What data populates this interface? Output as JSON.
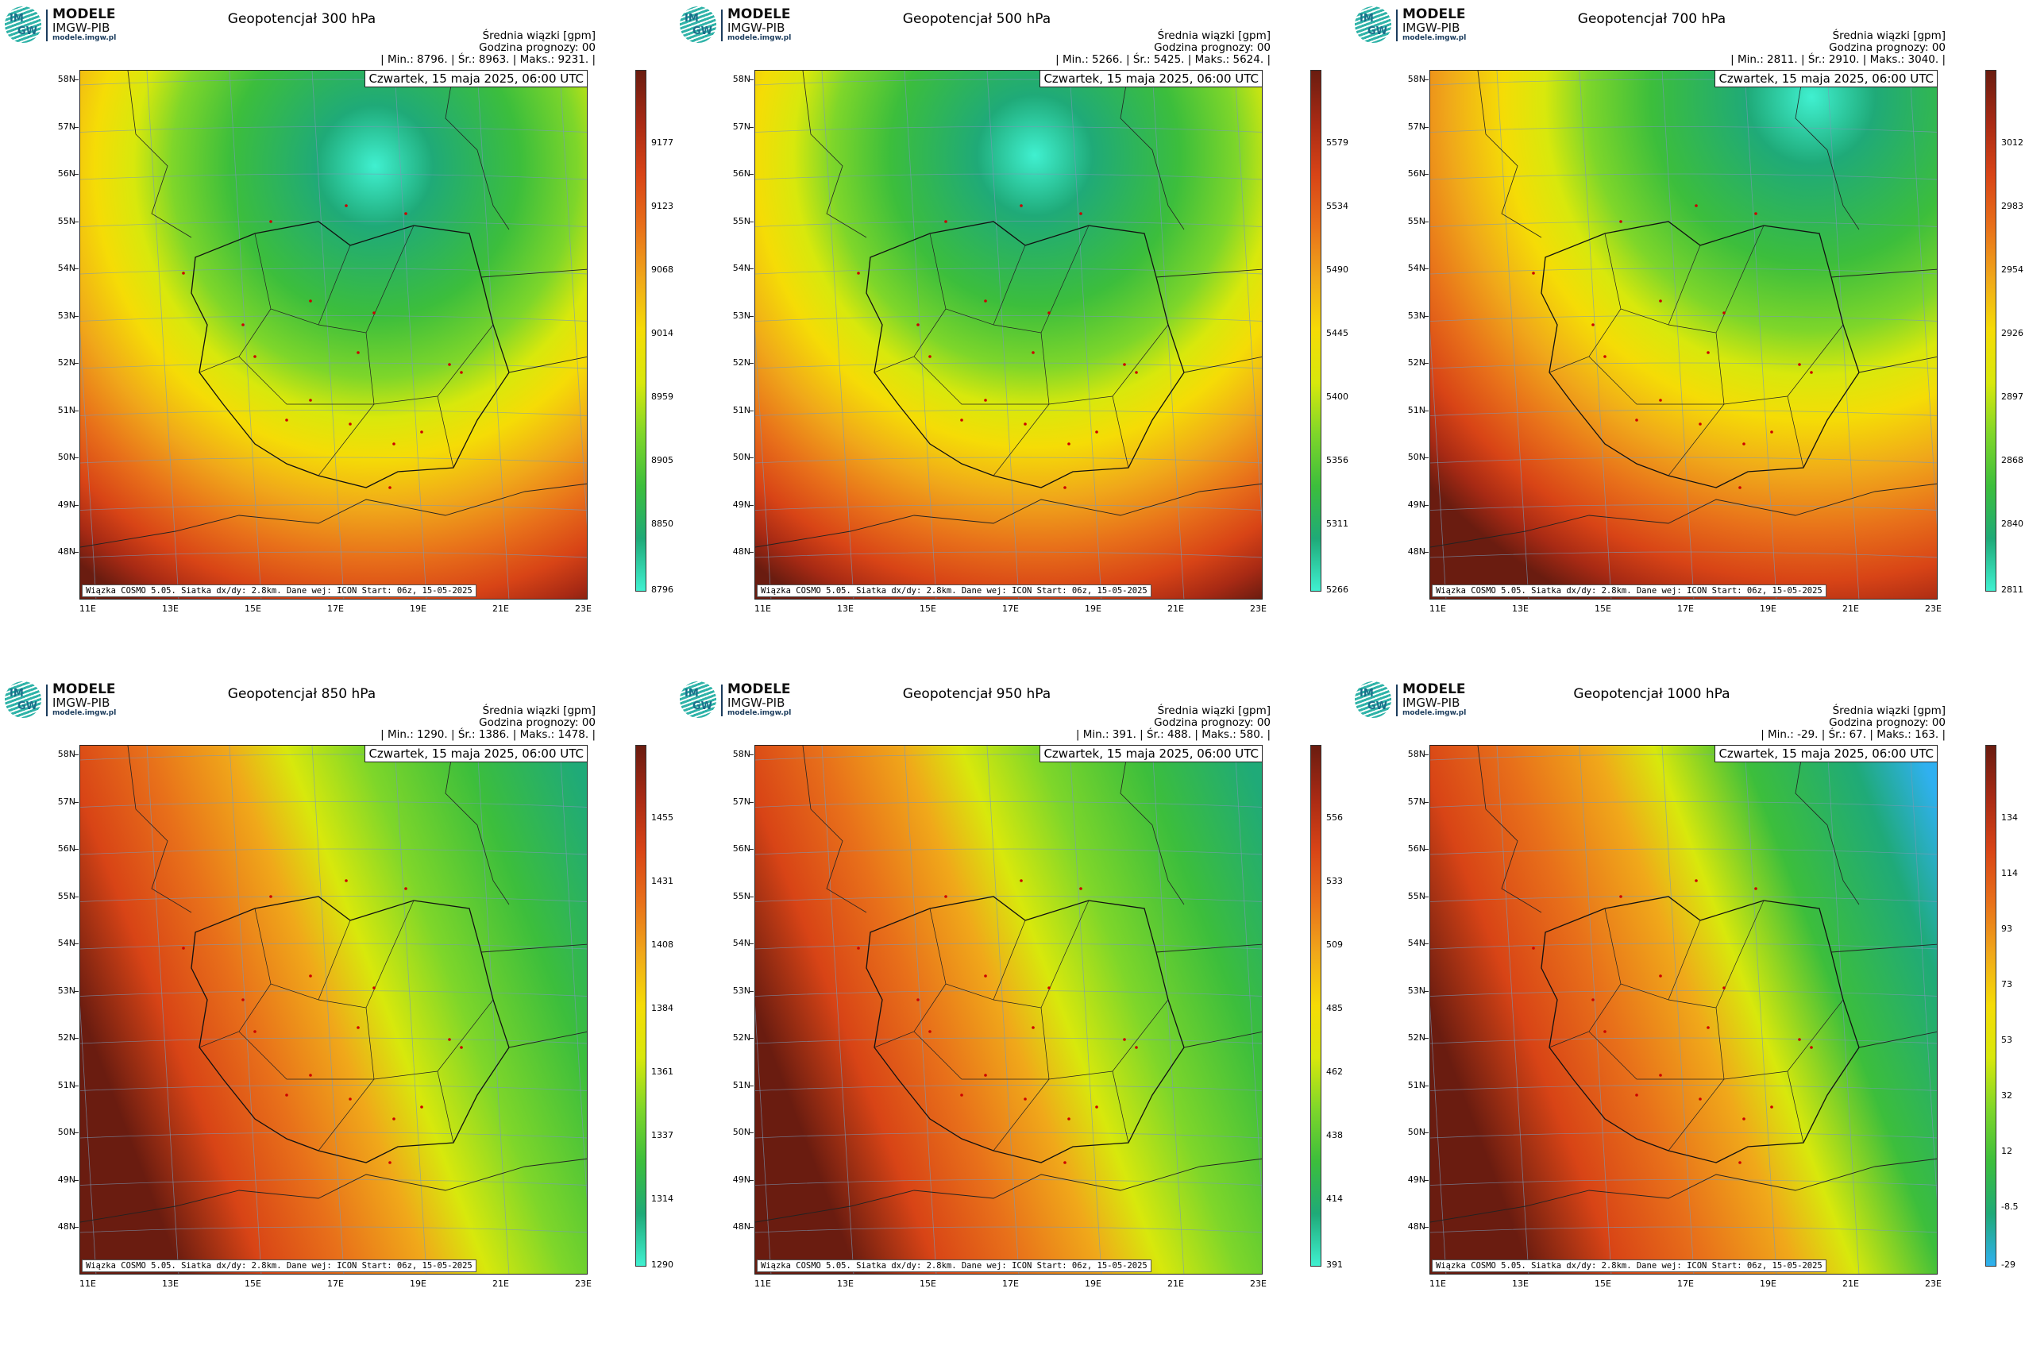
{
  "logo": {
    "mark_top": "IM",
    "mark_bottom": "GW",
    "title": "MODELE",
    "subtitle": "IMGW-PIB",
    "url": "modele.imgw.pl"
  },
  "common": {
    "info_line1": "Średnia wiązki [gpm]",
    "info_line2": "Godzina prognozy: 00",
    "date": "Czwartek, 15 maja 2025, 06:00 UTC",
    "footer": "Wiązka COSMO 5.05. Siatka dx/dy: 2.8km. Dane wej: ICON Start: 06z, 15-05-2025",
    "lat_labels": [
      "58N",
      "57N",
      "56N",
      "55N",
      "54N",
      "53N",
      "52N",
      "51N",
      "50N",
      "49N",
      "48N"
    ],
    "lon_labels": [
      "11E",
      "13E",
      "15E",
      "17E",
      "19E",
      "21E",
      "23E"
    ]
  },
  "panels": [
    {
      "title": "Geopotencjał 300 hPa",
      "stats": "| Min.:   8796. | Śr.:   8963. | Maks.:   9231. |",
      "cbar_labels": [
        "9177",
        "9123",
        "9068",
        "9014",
        "8959",
        "8905",
        "8850",
        "8796"
      ],
      "pattern": "low"
    },
    {
      "title": "Geopotencjał 500 hPa",
      "stats": "| Min.:   5266. | Śr.:   5425. | Maks.:   5624. |",
      "cbar_labels": [
        "5579",
        "5534",
        "5490",
        "5445",
        "5400",
        "5356",
        "5311",
        "5266"
      ],
      "pattern": "low"
    },
    {
      "title": "Geopotencjał 700 hPa",
      "stats": "| Min.:   2811. | Śr.:   2910. | Maks.:   3040. |",
      "cbar_labels": [
        "3012",
        "2983",
        "2954",
        "2926",
        "2897",
        "2868",
        "2840",
        "2811"
      ],
      "pattern": "lowNE"
    },
    {
      "title": "Geopotencjał 850 hPa",
      "stats": "| Min.:   1290. | Śr.:   1386. | Maks.:   1478. |",
      "cbar_labels": [
        "1455",
        "1431",
        "1408",
        "1384",
        "1361",
        "1337",
        "1314",
        "1290"
      ],
      "pattern": "east"
    },
    {
      "title": "Geopotencjał 950 hPa",
      "stats": "| Min.:   391. | Śr.:   488. | Maks.:   580. |",
      "cbar_labels": [
        "556",
        "533",
        "509",
        "485",
        "462",
        "438",
        "414",
        "391"
      ],
      "pattern": "east"
    },
    {
      "title": "Geopotencjał 1000 hPa",
      "stats": "| Min.:   -29. | Śr.:   67. | Maks.:   163. |",
      "cbar_labels": [
        "134",
        "114",
        "93",
        "73",
        "53",
        "32",
        "12",
        "-8.5",
        "-29"
      ],
      "pattern": "east1000"
    }
  ],
  "colors": {
    "ramp": [
      "#40f0d0",
      "#1faa78",
      "#3cbe3c",
      "#7ed62a",
      "#d8e80c",
      "#f5dc06",
      "#f0a81a",
      "#e8701a",
      "#d84416",
      "#a82a14",
      "#6a1c10"
    ]
  }
}
